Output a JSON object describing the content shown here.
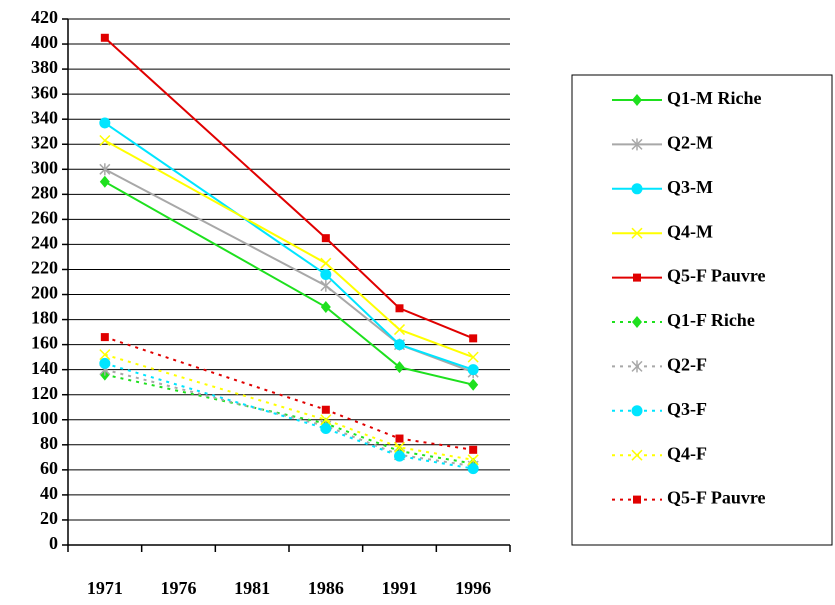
{
  "chart_data": {
    "type": "line",
    "x": [
      1971,
      1986,
      1991,
      1996
    ],
    "xlim": [
      1968.5,
      1998.5
    ],
    "xticks": [
      1971,
      1976,
      1981,
      1986,
      1991,
      1996
    ],
    "ylim": [
      0,
      420
    ],
    "yticks": [
      0,
      20,
      40,
      60,
      80,
      100,
      120,
      140,
      160,
      180,
      200,
      220,
      240,
      260,
      280,
      300,
      320,
      340,
      360,
      380,
      400,
      420
    ],
    "grid": true,
    "legend": "right",
    "series": [
      {
        "name": "Q1-M Riche",
        "color": "#1ee01e",
        "marker": "diamond",
        "dash": "solid",
        "values": [
          290,
          190,
          142,
          128
        ]
      },
      {
        "name": "Q2-M",
        "color": "#a8a8a8",
        "marker": "asterisk",
        "dash": "solid",
        "values": [
          300,
          207,
          160,
          138
        ]
      },
      {
        "name": "Q3-M",
        "color": "#00e5ff",
        "marker": "circle",
        "dash": "solid",
        "values": [
          337,
          216,
          160,
          140
        ]
      },
      {
        "name": "Q4-M",
        "color": "#ffff00",
        "marker": "x",
        "dash": "solid",
        "values": [
          323,
          225,
          172,
          150
        ]
      },
      {
        "name": "Q5-F Pauvre",
        "color": "#e00000",
        "marker": "square",
        "dash": "solid",
        "values": [
          405,
          245,
          189,
          165
        ]
      },
      {
        "name": "Q1-F Riche",
        "color": "#1ee01e",
        "marker": "diamond",
        "dash": "dotted",
        "values": [
          136,
          97,
          75,
          65
        ]
      },
      {
        "name": "Q2-F",
        "color": "#a8a8a8",
        "marker": "asterisk",
        "dash": "dotted",
        "values": [
          140,
          95,
          72,
          63
        ]
      },
      {
        "name": "Q3-F",
        "color": "#00e5ff",
        "marker": "circle",
        "dash": "dotted",
        "values": [
          145,
          93,
          71,
          61
        ]
      },
      {
        "name": "Q4-F",
        "color": "#ffff00",
        "marker": "x",
        "dash": "dotted",
        "values": [
          152,
          100,
          78,
          68
        ]
      },
      {
        "name": "Q5-F Pauvre",
        "color": "#e00000",
        "marker": "square",
        "dash": "dotted",
        "values": [
          166,
          108,
          85,
          76
        ]
      }
    ]
  }
}
